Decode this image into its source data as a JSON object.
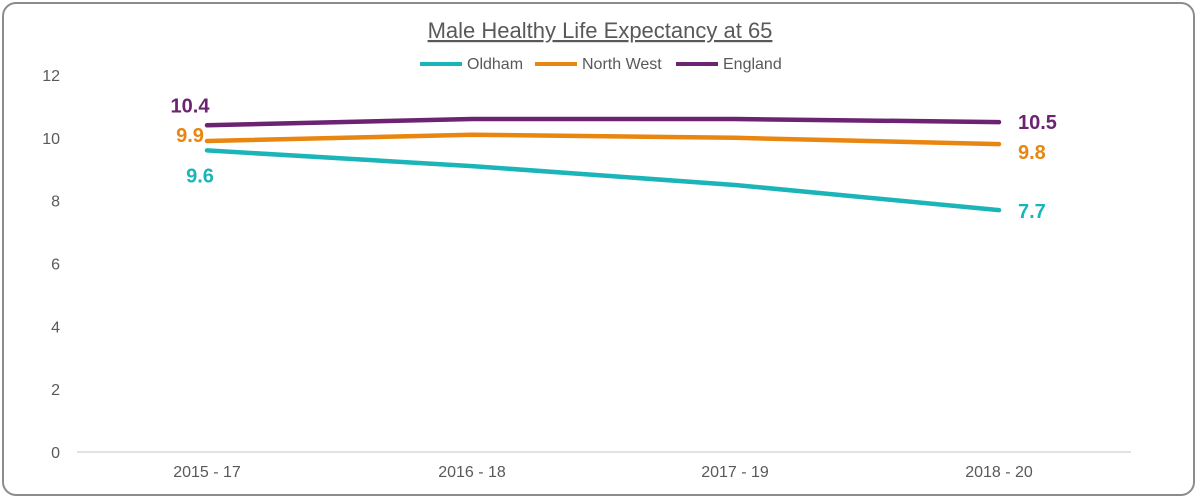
{
  "chart_data": {
    "type": "line",
    "title": "Male Healthy Life Expectancy at 65",
    "xlabel": "",
    "ylabel": "",
    "categories": [
      "2015 - 17",
      "2016 - 18",
      "2017 - 19",
      "2018 - 20"
    ],
    "ylim": [
      0,
      12
    ],
    "yticks": [
      0,
      2,
      4,
      6,
      8,
      10,
      12
    ],
    "grid": false,
    "legend": "top-center",
    "series": [
      {
        "name": "Oldham",
        "color": "#1BB5B9",
        "values": [
          9.6,
          9.1,
          8.5,
          7.7
        ],
        "labels": {
          "first": "9.6",
          "last": "7.7"
        }
      },
      {
        "name": "North West",
        "color": "#E8860F",
        "values": [
          9.9,
          10.1,
          10.0,
          9.8
        ],
        "labels": {
          "first": "9.9",
          "last": "9.8"
        }
      },
      {
        "name": "England",
        "color": "#6B2372",
        "values": [
          10.4,
          10.6,
          10.6,
          10.5
        ],
        "labels": {
          "first": "10.4",
          "last": "10.5"
        }
      }
    ]
  }
}
